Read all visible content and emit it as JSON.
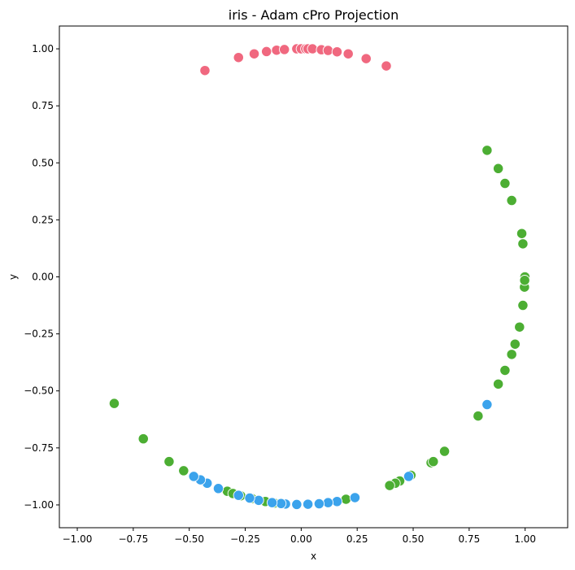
{
  "chart_data": {
    "type": "scatter",
    "title": "iris - Adam cPro Projection",
    "xlabel": "x",
    "ylabel": "y",
    "xlim": [
      -1.08,
      1.19
    ],
    "ylim": [
      -1.1,
      1.1
    ],
    "xticks": [
      "−1.00",
      "−0.75",
      "−0.50",
      "−0.25",
      "0.00",
      "0.25",
      "0.50",
      "0.75",
      "1.00"
    ],
    "yticks": [
      "−1.00",
      "−0.75",
      "−0.50",
      "−0.25",
      "0.00",
      "0.25",
      "0.50",
      "0.75",
      "1.00"
    ],
    "xtick_values": [
      -1.0,
      -0.75,
      -0.5,
      -0.25,
      0.0,
      0.25,
      0.5,
      0.75,
      1.0
    ],
    "ytick_values": [
      -1.0,
      -0.75,
      -0.5,
      -0.25,
      0.0,
      0.25,
      0.5,
      0.75,
      1.0
    ],
    "grid": false,
    "legend": false,
    "series": [
      {
        "color": "#f0687f",
        "points": [
          [
            -0.43,
            0.905
          ],
          [
            -0.28,
            0.962
          ],
          [
            -0.21,
            0.978
          ],
          [
            -0.155,
            0.988
          ],
          [
            -0.11,
            0.994
          ],
          [
            -0.075,
            0.997
          ],
          [
            -0.02,
            1.0
          ],
          [
            0.0,
            1.0
          ],
          [
            0.02,
            1.0
          ],
          [
            0.03,
            1.0
          ],
          [
            0.05,
            1.0
          ],
          [
            0.09,
            0.996
          ],
          [
            0.12,
            0.993
          ],
          [
            0.16,
            0.987
          ],
          [
            0.21,
            0.978
          ],
          [
            0.29,
            0.957
          ],
          [
            0.38,
            0.925
          ]
        ]
      },
      {
        "color": "#4cae33",
        "points": [
          [
            0.83,
            0.555
          ],
          [
            0.88,
            0.475
          ],
          [
            0.91,
            0.41
          ],
          [
            0.94,
            0.335
          ],
          [
            0.985,
            0.19
          ],
          [
            0.99,
            0.145
          ],
          [
            0.999,
            0.0
          ],
          [
            0.997,
            -0.045
          ],
          [
            0.998,
            -0.015
          ],
          [
            0.99,
            -0.125
          ],
          [
            0.975,
            -0.22
          ],
          [
            0.955,
            -0.295
          ],
          [
            0.94,
            -0.34
          ],
          [
            0.91,
            -0.41
          ],
          [
            0.88,
            -0.47
          ],
          [
            0.79,
            -0.61
          ],
          [
            0.64,
            -0.765
          ],
          [
            0.58,
            -0.815
          ],
          [
            0.59,
            -0.81
          ],
          [
            0.49,
            -0.87
          ],
          [
            0.44,
            -0.895
          ],
          [
            0.42,
            -0.905
          ],
          [
            0.395,
            -0.915
          ],
          [
            0.2,
            -0.975
          ],
          [
            -0.835,
            -0.555
          ],
          [
            -0.705,
            -0.71
          ],
          [
            -0.59,
            -0.81
          ],
          [
            -0.525,
            -0.85
          ],
          [
            -0.33,
            -0.94
          ],
          [
            -0.305,
            -0.95
          ],
          [
            -0.27,
            -0.96
          ],
          [
            -0.22,
            -0.972
          ],
          [
            -0.16,
            -0.985
          ],
          [
            -0.12,
            -0.992
          ]
        ]
      },
      {
        "color": "#3ba3ec",
        "points": [
          [
            0.83,
            -0.56
          ],
          [
            0.48,
            -0.875
          ],
          [
            0.24,
            -0.968
          ],
          [
            0.16,
            -0.985
          ],
          [
            0.12,
            -0.99
          ],
          [
            0.08,
            -0.995
          ],
          [
            0.03,
            -0.997
          ],
          [
            -0.02,
            -0.998
          ],
          [
            -0.07,
            -0.996
          ],
          [
            -0.09,
            -0.994
          ],
          [
            -0.13,
            -0.99
          ],
          [
            -0.19,
            -0.98
          ],
          [
            -0.23,
            -0.97
          ],
          [
            -0.28,
            -0.958
          ],
          [
            -0.37,
            -0.928
          ],
          [
            -0.42,
            -0.905
          ],
          [
            -0.45,
            -0.89
          ],
          [
            -0.48,
            -0.875
          ]
        ]
      }
    ]
  }
}
